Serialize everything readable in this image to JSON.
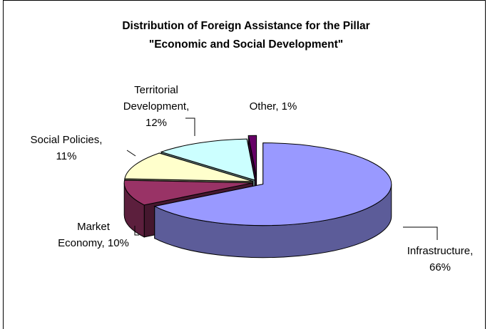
{
  "chart_data": {
    "type": "pie",
    "title": "Distribution of Foreign Assistance for the Pillar",
    "subtitle": "\"Economic and Social Development\"",
    "unit": "%",
    "exploded": true,
    "three_d": true,
    "legend": "none",
    "slices": [
      {
        "name": "Infrastructure",
        "value": 66,
        "label_lines": [
          "Infrastructure,",
          "66%"
        ],
        "color": "#9999ff"
      },
      {
        "name": "Market Economy",
        "value": 10,
        "label_lines": [
          "Market",
          "Economy, 10%"
        ],
        "color": "#993366"
      },
      {
        "name": "Social Policies",
        "value": 11,
        "label_lines": [
          "Social Policies,",
          "11%"
        ],
        "color": "#ffffcc"
      },
      {
        "name": "Territorial Development",
        "value": 12,
        "label_lines": [
          "Territorial",
          "Development,",
          "12%"
        ],
        "color": "#ccffff"
      },
      {
        "name": "Other",
        "value": 1,
        "label_lines": [
          "Other, 1%"
        ],
        "color": "#660066"
      }
    ]
  }
}
